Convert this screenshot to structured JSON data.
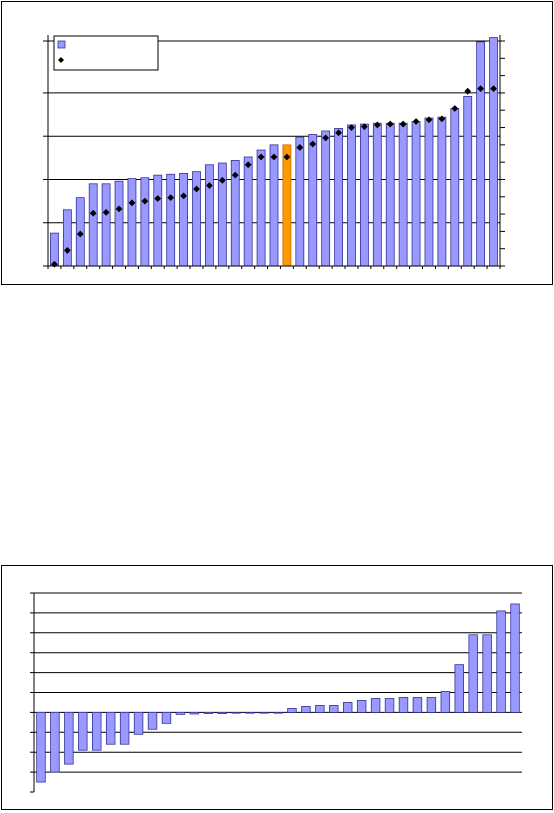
{
  "colors": {
    "bar_fill": "#9999ff",
    "bar_stroke": "#333399",
    "highlight_fill": "#ff9900",
    "highlight_stroke": "#cc6600",
    "marker": "#000000",
    "grid": "#000000"
  },
  "chart_data": [
    {
      "type": "bar",
      "title": "",
      "xlabel": "",
      "ylabel": "",
      "grid": true,
      "legend_position": "top-left",
      "ylim": [
        0,
        260
      ],
      "y_gridlines": [
        0,
        50,
        100,
        150,
        200,
        260
      ],
      "highlight_index": 18,
      "series": [
        {
          "type": "bar",
          "name": "",
          "values": [
            38,
            65,
            79,
            95,
            95,
            98,
            101,
            102,
            105,
            106,
            107,
            109,
            117,
            119,
            122,
            126,
            134,
            140,
            140,
            149,
            152,
            156,
            159,
            163,
            164,
            165,
            165,
            165,
            167,
            171,
            172,
            182,
            196,
            259,
            264
          ]
        },
        {
          "type": "marker",
          "name": "",
          "values": [
            2,
            18,
            37,
            61,
            62,
            66,
            73,
            75,
            78,
            79,
            81,
            89,
            93,
            99,
            105,
            117,
            126,
            126,
            126,
            137,
            141,
            148,
            154,
            160,
            161,
            163,
            164,
            164,
            167,
            169,
            170,
            182,
            202,
            205,
            205
          ]
        }
      ]
    },
    {
      "type": "bar",
      "title": "",
      "xlabel": "",
      "ylabel": "",
      "grid": true,
      "ylim": [
        -4,
        6
      ],
      "y_gridlines": [
        -4,
        -3,
        -2,
        -1,
        0,
        1,
        2,
        3,
        4,
        5,
        6
      ],
      "series": [
        {
          "name": "",
          "values": [
            -3.5,
            -3.0,
            -2.6,
            -1.9,
            -1.9,
            -1.6,
            -1.6,
            -1.1,
            -0.85,
            -0.55,
            -0.1,
            -0.08,
            -0.06,
            -0.06,
            0,
            0,
            0,
            0,
            0.2,
            0.3,
            0.35,
            0.35,
            0.5,
            0.6,
            0.7,
            0.7,
            0.75,
            0.75,
            0.75,
            1.05,
            2.4,
            3.9,
            3.9,
            5.1,
            5.45
          ]
        }
      ]
    }
  ]
}
